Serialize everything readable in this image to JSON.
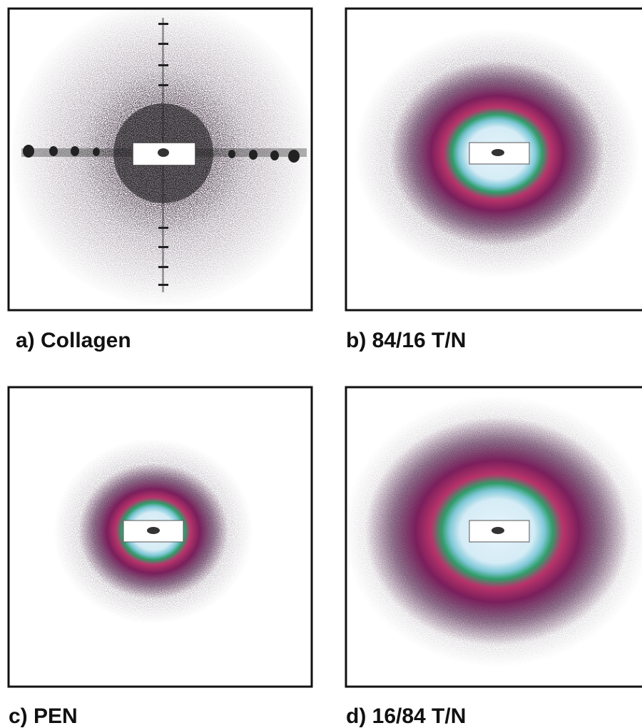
{
  "panels": [
    {
      "label": "a) Collagen"
    },
    {
      "label": "b) 84/16 T/N"
    },
    {
      "label": "c) PEN"
    },
    {
      "label": "d) 16/84 T/N"
    }
  ]
}
